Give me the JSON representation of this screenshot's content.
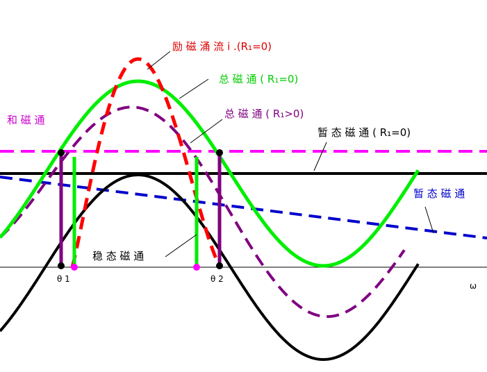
{
  "labels": {
    "inrush": "励 磁 涌 流 i .(R₁=0)",
    "total_r0": "总 磁 通 ( R₁=0)",
    "total_rgt0": "总 磁 通 ( R₁>0)",
    "sum_flux": "和 磁 通",
    "transient_r0": "暂 态 磁 通 ( R₁=0)",
    "transient": "暂 态 磁 通",
    "steady": "稳 态 磁 通",
    "theta1": "θ 1",
    "theta2": "θ 2",
    "omega": "ω"
  }
}
